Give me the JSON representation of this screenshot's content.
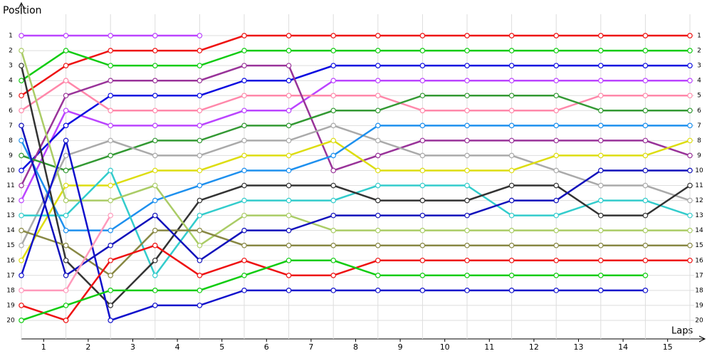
{
  "chart_data": {
    "type": "line",
    "y_label": "Position",
    "x_label": "Laps",
    "x": [
      0,
      1,
      2,
      3,
      4,
      5,
      6,
      7,
      8,
      9,
      10,
      11,
      12,
      13,
      14,
      15
    ],
    "laps": [
      "1",
      "2",
      "3",
      "4",
      "5",
      "6",
      "7",
      "8",
      "9",
      "10",
      "11",
      "12",
      "13",
      "14",
      "15"
    ],
    "xlim": [
      0,
      15
    ],
    "ylim": [
      0,
      21
    ],
    "yticks": [
      1,
      2,
      3,
      4,
      5,
      6,
      7,
      8,
      9,
      10,
      11,
      12,
      13,
      14,
      15,
      16,
      17,
      18,
      19,
      20
    ],
    "y_inverted": true,
    "grid": true,
    "series": [
      {
        "color": "#ee1111",
        "values": [
          5,
          3,
          2,
          2,
          2,
          1,
          1,
          1,
          1,
          1,
          1,
          1,
          1,
          1,
          1,
          1
        ]
      },
      {
        "color": "#bb44ff",
        "values": [
          1,
          1,
          1,
          1,
          1,
          null,
          null,
          null,
          null,
          null,
          null,
          null,
          null,
          null,
          null,
          null
        ]
      },
      {
        "color": "#bb44ff",
        "values": [
          12,
          6,
          7,
          7,
          7,
          6,
          6,
          4,
          4,
          4,
          4,
          4,
          4,
          4,
          4,
          4
        ]
      },
      {
        "color": "#11cc11",
        "values": [
          4,
          2,
          3,
          3,
          3,
          2,
          2,
          2,
          2,
          2,
          2,
          2,
          2,
          2,
          2,
          2
        ]
      },
      {
        "color": "#0a0ae0",
        "values": [
          10,
          7,
          5,
          5,
          5,
          4,
          4,
          3,
          3,
          3,
          3,
          3,
          3,
          3,
          3,
          3
        ]
      },
      {
        "color": "#ff88aa",
        "values": [
          6,
          4,
          6,
          6,
          6,
          5,
          5,
          5,
          5,
          6,
          6,
          6,
          6,
          5,
          5,
          5
        ]
      },
      {
        "color": "#993399",
        "values": [
          11,
          5,
          4,
          4,
          4,
          3,
          3,
          10,
          9,
          8,
          8,
          8,
          8,
          8,
          8,
          9
        ]
      },
      {
        "color": "#339933",
        "values": [
          9,
          10,
          9,
          8,
          8,
          7,
          7,
          6,
          6,
          5,
          5,
          5,
          5,
          6,
          6,
          6
        ]
      },
      {
        "color": "#aaaaaa",
        "values": [
          15,
          9,
          8,
          9,
          9,
          8,
          8,
          7,
          8,
          9,
          9,
          9,
          10,
          11,
          11,
          12
        ]
      },
      {
        "color": "#dddd11",
        "values": [
          16,
          11,
          11,
          10,
          10,
          9,
          9,
          8,
          10,
          10,
          10,
          10,
          9,
          9,
          9,
          8
        ]
      },
      {
        "color": "#1e90ee",
        "values": [
          8,
          14,
          14,
          12,
          11,
          10,
          10,
          9,
          7,
          7,
          7,
          7,
          7,
          7,
          7,
          7
        ]
      },
      {
        "color": "#33cccc",
        "values": [
          13,
          13,
          10,
          17,
          13,
          12,
          12,
          12,
          11,
          11,
          11,
          13,
          13,
          12,
          12,
          13
        ]
      },
      {
        "color": "#333333",
        "values": [
          3,
          16,
          19,
          16,
          12,
          11,
          11,
          11,
          12,
          12,
          12,
          11,
          11,
          13,
          13,
          11
        ]
      },
      {
        "color": "#aacc66",
        "values": [
          2,
          12,
          12,
          11,
          15,
          13,
          13,
          14,
          14,
          14,
          14,
          14,
          14,
          14,
          14,
          14
        ]
      },
      {
        "color": "#888844",
        "values": [
          14,
          15,
          17,
          14,
          14,
          15,
          15,
          15,
          15,
          15,
          15,
          15,
          15,
          15,
          15,
          15
        ]
      },
      {
        "color": "#1111cc",
        "values": [
          17,
          8,
          20,
          19,
          19,
          18,
          18,
          18,
          18,
          18,
          18,
          18,
          18,
          18,
          18,
          null
        ]
      },
      {
        "color": "#1111bb",
        "values": [
          7,
          17,
          15,
          13,
          16,
          14,
          14,
          13,
          13,
          13,
          13,
          12,
          12,
          10,
          10,
          10
        ]
      },
      {
        "color": "#ee1111",
        "values": [
          19,
          20,
          16,
          15,
          17,
          16,
          17,
          17,
          16,
          16,
          16,
          16,
          16,
          16,
          16,
          16
        ]
      },
      {
        "color": "#11cc11",
        "values": [
          20,
          19,
          18,
          18,
          18,
          17,
          16,
          16,
          17,
          17,
          17,
          17,
          17,
          17,
          17,
          null
        ]
      },
      {
        "color": "#ff99bb",
        "values": [
          18,
          18,
          13,
          null,
          null,
          null,
          null,
          null,
          null,
          null,
          null,
          null,
          null,
          null,
          null,
          null
        ]
      }
    ]
  }
}
